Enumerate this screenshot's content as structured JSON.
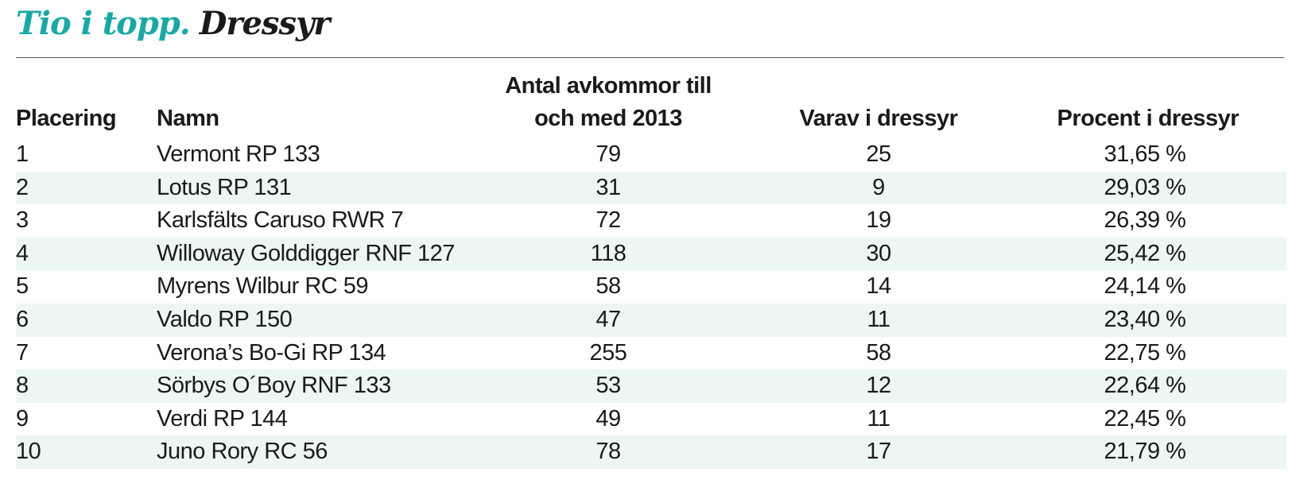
{
  "title": {
    "accent": "Tio i topp.",
    "main": "Dressyr"
  },
  "table": {
    "headers": {
      "placering": "Placering",
      "namn": "Namn",
      "antal": "Antal avkommor till och med 2013",
      "varav": "Varav i dressyr",
      "procent": "Procent i dressyr"
    },
    "rows": [
      {
        "placering": "1",
        "namn": "Vermont RP 133",
        "antal": "79",
        "varav": "25",
        "procent": "31,65 %"
      },
      {
        "placering": "2",
        "namn": "Lotus RP 131",
        "antal": "31",
        "varav": "9",
        "procent": "29,03 %"
      },
      {
        "placering": "3",
        "namn": "Karlsfälts Caruso RWR 7",
        "antal": "72",
        "varav": "19",
        "procent": "26,39 %"
      },
      {
        "placering": "4",
        "namn": "Willoway Golddigger RNF 127",
        "antal": "118",
        "varav": "30",
        "procent": "25,42 %"
      },
      {
        "placering": "5",
        "namn": "Myrens Wilbur RC 59",
        "antal": "58",
        "varav": "14",
        "procent": "24,14 %"
      },
      {
        "placering": "6",
        "namn": "Valdo RP 150",
        "antal": "47",
        "varav": "11",
        "procent": "23,40 %"
      },
      {
        "placering": "7",
        "namn": "Verona’s Bo-Gi RP 134",
        "antal": "255",
        "varav": "58",
        "procent": "22,75 %"
      },
      {
        "placering": "8",
        "namn": "Sörbys O´Boy RNF 133",
        "antal": "53",
        "varav": "12",
        "procent": "22,64 %"
      },
      {
        "placering": "9",
        "namn": "Verdi RP 144",
        "antal": "49",
        "varav": "11",
        "procent": "22,45 %"
      },
      {
        "placering": "10",
        "namn": "Juno Rory RC 56",
        "antal": "78",
        "varav": "17",
        "procent": "21,79 %"
      }
    ]
  },
  "colors": {
    "accent": "#1aa8a6",
    "stripe": "#ecf6f5",
    "text": "#1a1a1a"
  }
}
